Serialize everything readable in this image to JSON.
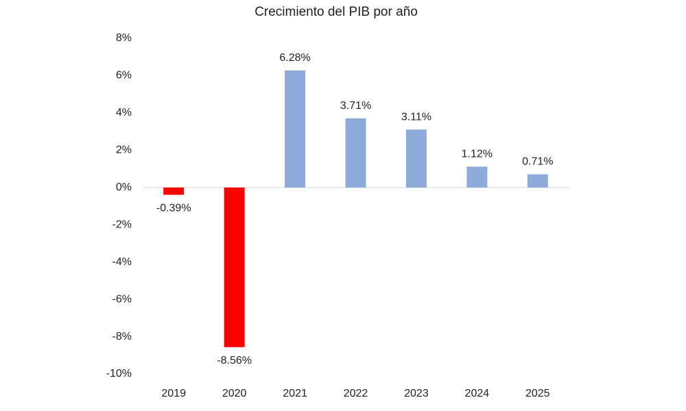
{
  "chart_data": {
    "type": "bar",
    "title": "Crecimiento del PIB por año",
    "categories": [
      "2019",
      "2020",
      "2021",
      "2022",
      "2023",
      "2024",
      "2025"
    ],
    "values": [
      -0.39,
      -8.56,
      6.28,
      3.71,
      3.11,
      1.12,
      0.71
    ],
    "value_labels": [
      "-0.39%",
      "-8.56%",
      "6.28%",
      "3.71%",
      "3.11%",
      "1.12%",
      "0.71%"
    ],
    "colors": [
      "#ff0000",
      "#ff0000",
      "#8eaadb",
      "#8eaadb",
      "#8eaadb",
      "#8eaadb",
      "#8eaadb"
    ],
    "ylim": [
      -10,
      8
    ],
    "yticks": [
      {
        "value": 8,
        "label": "8%"
      },
      {
        "value": 6,
        "label": "6%"
      },
      {
        "value": 4,
        "label": "4%"
      },
      {
        "value": 2,
        "label": "2%"
      },
      {
        "value": 0,
        "label": "0%"
      },
      {
        "value": -2,
        "label": "-2%"
      },
      {
        "value": -4,
        "label": "-4%"
      },
      {
        "value": -6,
        "label": "-6%"
      },
      {
        "value": -8,
        "label": "-8%"
      },
      {
        "value": -10,
        "label": "-10%"
      }
    ],
    "grid": false
  }
}
